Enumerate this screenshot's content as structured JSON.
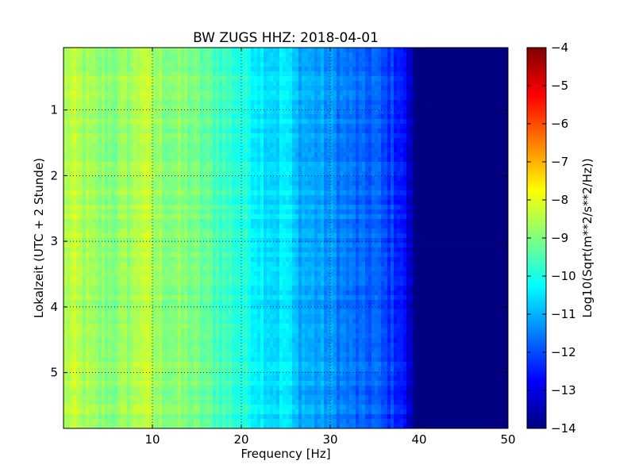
{
  "chart_data": {
    "type": "heatmap",
    "title": "BW ZUGS HHZ: 2018-04-01",
    "xlabel": "Frequency [Hz]",
    "ylabel": "Lokalzeit (UTC + 2 Stunde)",
    "xlim": [
      0,
      50
    ],
    "ylim": [
      5.85,
      0.05
    ],
    "y_axis_inverted": true,
    "x_ticks": [
      10,
      20,
      30,
      40,
      50
    ],
    "y_ticks": [
      1,
      2,
      3,
      4,
      5
    ],
    "grid": true,
    "colormap": "jet",
    "colorbar": {
      "label": "Log10(Sqrt(m**2/s**2/Hz))",
      "range": [
        -14,
        -4
      ],
      "ticks": [
        -4,
        -5,
        -6,
        -7,
        -8,
        -9,
        -10,
        -11,
        -12,
        -13,
        -14
      ]
    },
    "frequency_profile": {
      "x": [
        0,
        1,
        2,
        4,
        6,
        8,
        9,
        10,
        12,
        14,
        16,
        18,
        20,
        22,
        24,
        25,
        26,
        28,
        30,
        32,
        34,
        35,
        36,
        37,
        38,
        38.5,
        39,
        39.5,
        40,
        45,
        50
      ],
      "value": [
        -8.6,
        -8.4,
        -8.6,
        -8.9,
        -8.9,
        -8.6,
        -8.2,
        -8.7,
        -8.9,
        -9.0,
        -9.3,
        -9.6,
        -9.9,
        -10.3,
        -10.6,
        -10.3,
        -10.9,
        -11.1,
        -11.3,
        -11.6,
        -11.9,
        -11.7,
        -12.1,
        -12.2,
        -12.4,
        -12.9,
        -13.4,
        -13.8,
        -14.0,
        -14.0,
        -14.0
      ]
    }
  }
}
